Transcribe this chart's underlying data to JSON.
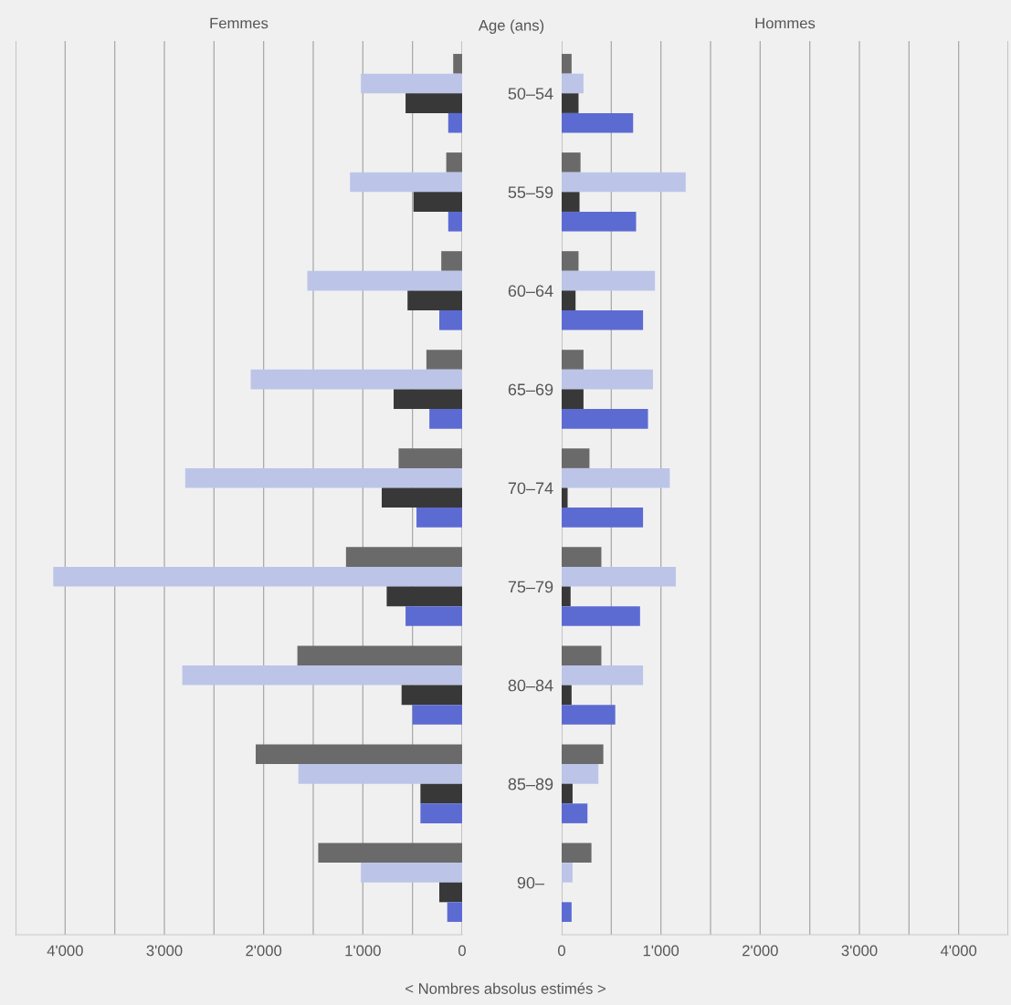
{
  "chart_data": [
    {
      "type": "bar",
      "orientation": "horizontal",
      "title": "Femmes",
      "ylabel": "Age (ans)",
      "categories": [
        "50–54",
        "55–59",
        "60–64",
        "65–69",
        "70–74",
        "75–79",
        "80–84",
        "85–89",
        "90–"
      ],
      "series": [
        {
          "color": "#6a6a6a",
          "values": [
            90,
            160,
            210,
            360,
            640,
            1170,
            1660,
            2080,
            1450
          ]
        },
        {
          "color": "#bcc5e8",
          "values": [
            1020,
            1130,
            1560,
            2130,
            2790,
            4120,
            2820,
            1650,
            1020
          ]
        },
        {
          "color": "#383838",
          "values": [
            570,
            490,
            550,
            690,
            810,
            760,
            610,
            420,
            230
          ]
        },
        {
          "color": "#5c6bd2",
          "values": [
            140,
            140,
            230,
            330,
            460,
            570,
            500,
            420,
            150
          ]
        }
      ],
      "xlim": [
        4500,
        0
      ],
      "xticks": [
        {
          "value": 4500,
          "label": null
        },
        {
          "value": 4000,
          "label": "4'000"
        },
        {
          "value": 3500,
          "label": null
        },
        {
          "value": 3000,
          "label": "3'000"
        },
        {
          "value": 2500,
          "label": null
        },
        {
          "value": 2000,
          "label": "2'000"
        },
        {
          "value": 1500,
          "label": null
        },
        {
          "value": 1000,
          "label": "1'000"
        },
        {
          "value": 500,
          "label": null
        },
        0
      ],
      "grid": "x",
      "annotations": [
        "< Nombres absolus estimés >"
      ]
    },
    {
      "type": "bar",
      "orientation": "horizontal",
      "title": "Hommes",
      "tick_labels": "x",
      "series": [
        {
          "color": "#6a6a6a",
          "values": [
            100,
            190,
            170,
            220,
            280,
            400,
            400,
            420,
            300
          ]
        },
        {
          "color": "#bcc5e8",
          "values": [
            220,
            1250,
            940,
            920,
            1090,
            1150,
            820,
            370,
            110
          ]
        },
        {
          "color": "#383838",
          "values": [
            170,
            180,
            140,
            220,
            60,
            90,
            100,
            110,
            0
          ]
        },
        {
          "color": "#5c6bd2",
          "values": [
            720,
            750,
            820,
            870,
            820,
            790,
            540,
            260,
            100
          ]
        }
      ],
      "xlim": [
        0,
        4500
      ],
      "xticks": [
        0,
        {
          "value": 500,
          "label": null
        },
        {
          "value": 1000,
          "label": "1'000"
        },
        {
          "value": 1500,
          "label": null
        },
        {
          "value": 2000,
          "label": "2'000"
        },
        {
          "value": 2500,
          "label": null
        },
        {
          "value": 3000,
          "label": "3'000"
        },
        {
          "value": 3500,
          "label": null
        },
        {
          "value": 4000,
          "label": "4'000"
        },
        {
          "value": 4500,
          "label": null
        }
      ],
      "grid": "x"
    }
  ]
}
